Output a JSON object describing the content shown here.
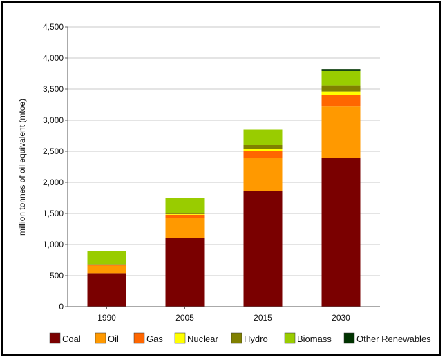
{
  "chart_data": {
    "type": "bar",
    "stacked": true,
    "title": "",
    "xlabel": "",
    "ylabel": "million tonnes of oil equivalent (mtoe)",
    "categories": [
      "1990",
      "2005",
      "2015",
      "2030"
    ],
    "ylim": [
      0,
      4500
    ],
    "yticks": [
      "0",
      "500",
      "1,000",
      "1,500",
      "2,000",
      "2,500",
      "3,000",
      "3,500",
      "4,000",
      "4,500"
    ],
    "ytick_values": [
      0,
      500,
      1000,
      1500,
      2000,
      2500,
      3000,
      3500,
      4000,
      4500
    ],
    "grid": true,
    "legend_position": "bottom",
    "series": [
      {
        "name": "Coal",
        "color": "#7a0000",
        "values": [
          540,
          1100,
          1860,
          2400
        ]
      },
      {
        "name": "Oil",
        "color": "#ff9900",
        "values": [
          120,
          330,
          530,
          820
        ]
      },
      {
        "name": "Gas",
        "color": "#ff6600",
        "values": [
          20,
          50,
          120,
          180
        ]
      },
      {
        "name": "Nuclear",
        "color": "#ffff00",
        "values": [
          0,
          10,
          30,
          60
        ]
      },
      {
        "name": "Hydro",
        "color": "#808000",
        "values": [
          5,
          20,
          60,
          100
        ]
      },
      {
        "name": "Biomass",
        "color": "#99cc00",
        "values": [
          205,
          240,
          250,
          230
        ]
      },
      {
        "name": "Other Renewables",
        "color": "#003300",
        "values": [
          0,
          0,
          0,
          30
        ]
      }
    ]
  }
}
